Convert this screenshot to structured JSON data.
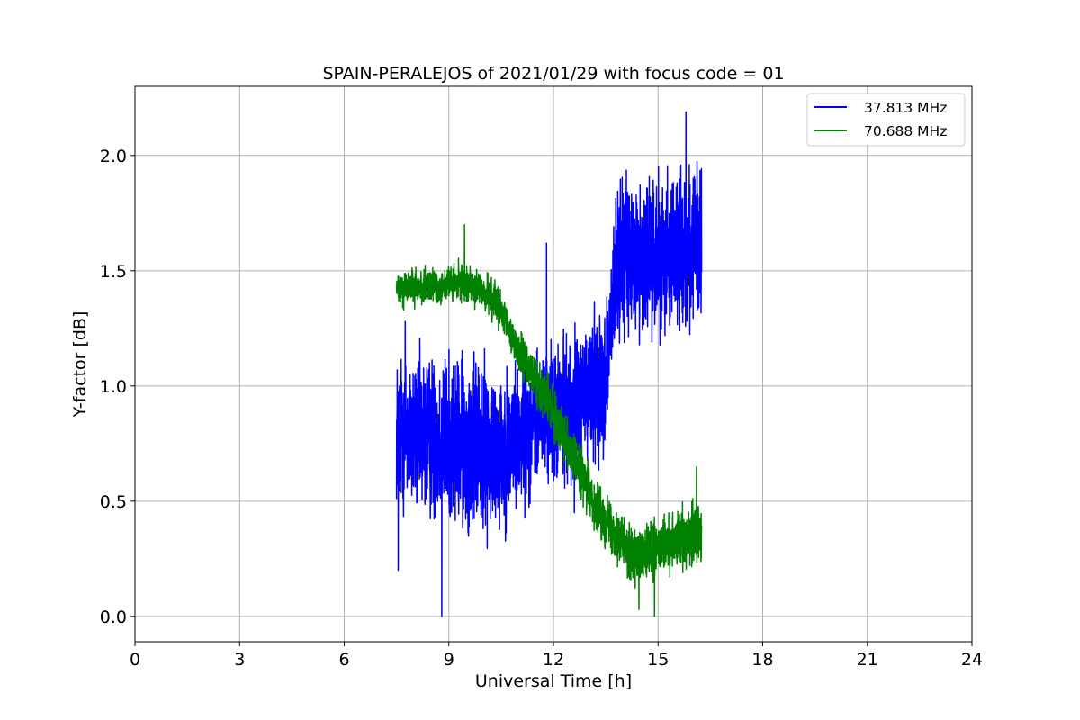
{
  "chart_data": {
    "type": "line",
    "title": "SPAIN-PERALEJOS of 2021/01/29 with focus code = 01",
    "xlabel": "Universal Time [h]",
    "ylabel": "Y-factor [dB]",
    "xlim": [
      0,
      24
    ],
    "ylim": [
      -0.11,
      2.3
    ],
    "xticks": [
      0,
      3,
      6,
      9,
      12,
      15,
      18,
      21,
      24
    ],
    "yticks": [
      0.0,
      0.5,
      1.0,
      1.5,
      2.0
    ],
    "grid": true,
    "legend": "top-right",
    "series": [
      {
        "name": "37.813 MHz",
        "color": "#0000ff",
        "x_range": [
          7.5,
          16.25
        ],
        "center": [
          [
            7.5,
            0.8
          ],
          [
            8.5,
            0.78
          ],
          [
            9.5,
            0.75
          ],
          [
            10.5,
            0.72
          ],
          [
            11.5,
            0.85
          ],
          [
            12.5,
            0.9
          ],
          [
            13.5,
            1.05
          ],
          [
            13.85,
            1.55
          ],
          [
            14.5,
            1.55
          ],
          [
            15.5,
            1.6
          ],
          [
            16.25,
            1.6
          ]
        ],
        "spread": [
          [
            7.5,
            0.38
          ],
          [
            10.0,
            0.42
          ],
          [
            11.5,
            0.32
          ],
          [
            13.0,
            0.35
          ],
          [
            13.85,
            0.38
          ],
          [
            16.25,
            0.38
          ]
        ],
        "peaks": [
          [
            15.8,
            2.19
          ],
          [
            7.75,
            1.28
          ],
          [
            11.8,
            1.62
          ]
        ],
        "troughs": [
          [
            8.8,
            0.0
          ],
          [
            7.55,
            0.2
          ],
          [
            12.6,
            0.45
          ]
        ]
      },
      {
        "name": "70.688 MHz",
        "color": "#008000",
        "x_range": [
          7.5,
          16.25
        ],
        "center": [
          [
            7.5,
            1.42
          ],
          [
            8.5,
            1.43
          ],
          [
            9.5,
            1.45
          ],
          [
            10.3,
            1.38
          ],
          [
            11.0,
            1.15
          ],
          [
            11.8,
            0.95
          ],
          [
            12.5,
            0.72
          ],
          [
            13.2,
            0.48
          ],
          [
            13.7,
            0.38
          ],
          [
            14.4,
            0.25
          ],
          [
            15.2,
            0.3
          ],
          [
            16.25,
            0.38
          ]
        ],
        "spread": [
          [
            7.5,
            0.09
          ],
          [
            10.0,
            0.09
          ],
          [
            12.0,
            0.12
          ],
          [
            13.5,
            0.13
          ],
          [
            16.25,
            0.15
          ]
        ],
        "peaks": [
          [
            9.45,
            1.7
          ],
          [
            16.1,
            0.65
          ]
        ],
        "troughs": [
          [
            14.9,
            0.0
          ],
          [
            14.45,
            0.03
          ]
        ]
      }
    ]
  }
}
